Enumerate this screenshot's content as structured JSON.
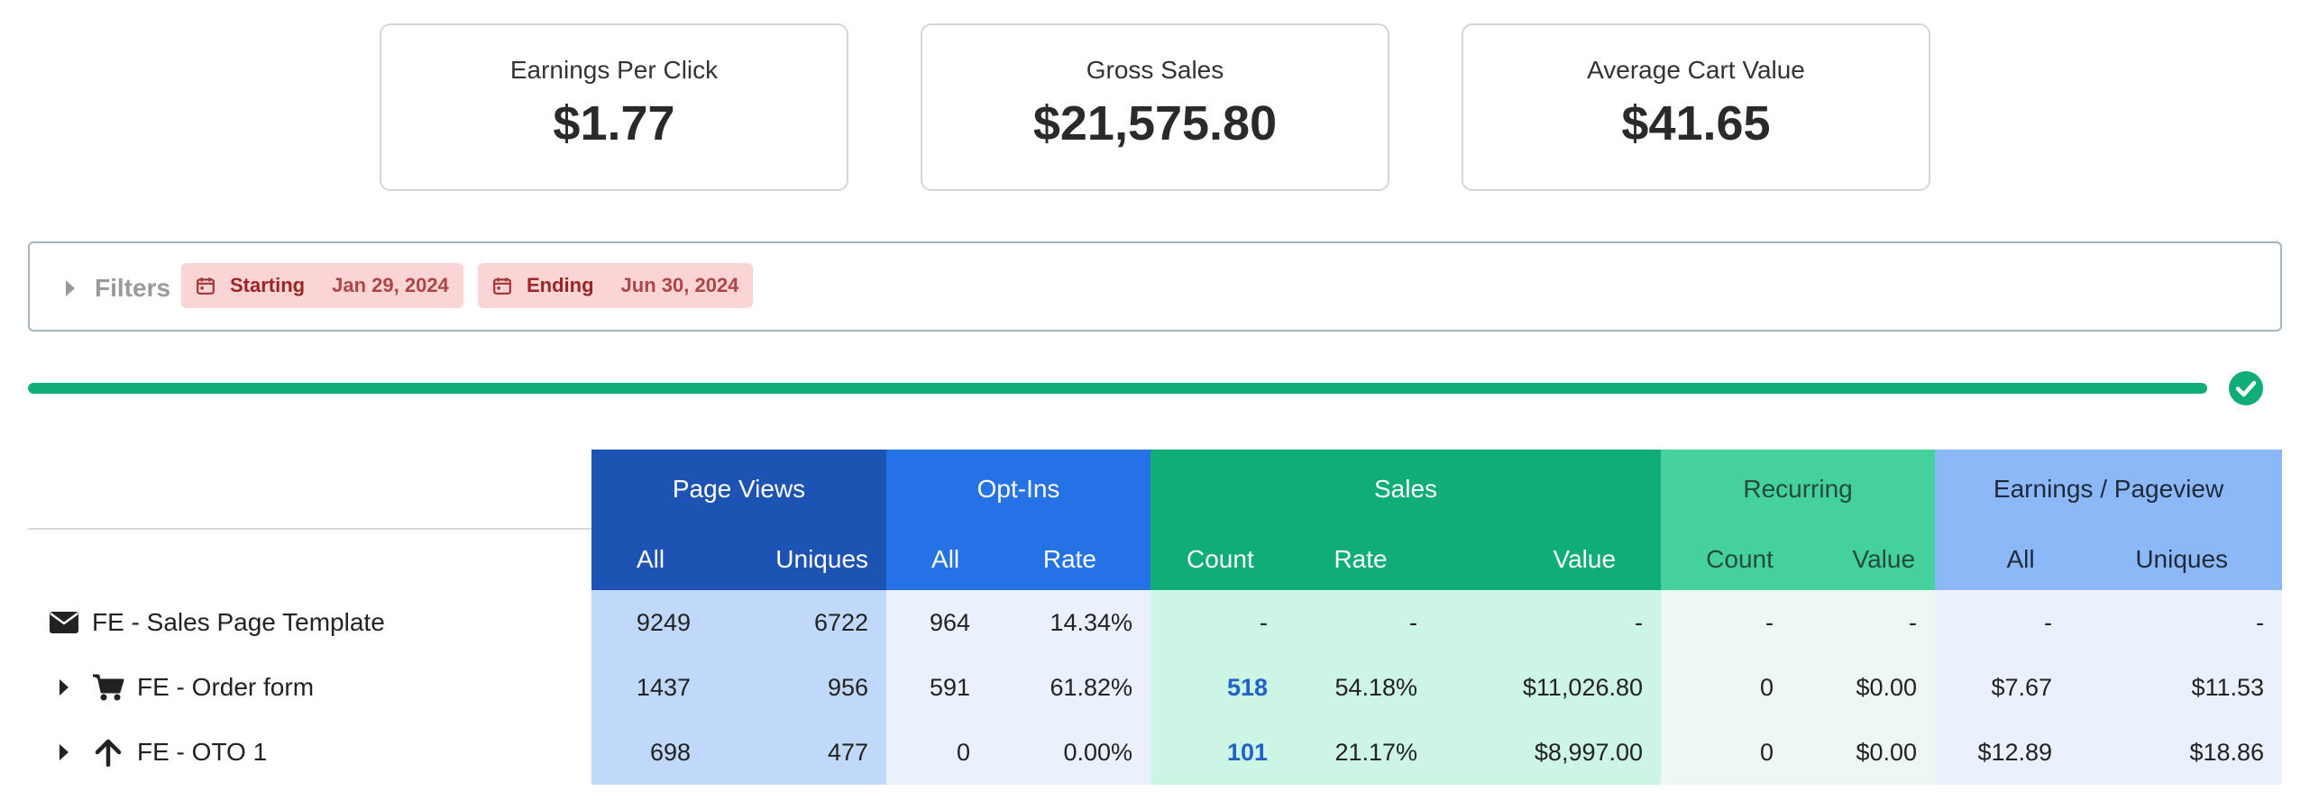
{
  "summary": {
    "cards": [
      {
        "label": "Earnings Per Click",
        "value": "$1.77"
      },
      {
        "label": "Gross Sales",
        "value": "$21,575.80"
      },
      {
        "label": "Average Cart Value",
        "value": "$41.65"
      }
    ]
  },
  "filters": {
    "label": "Filters",
    "start": {
      "key": "Starting",
      "value": "Jan 29, 2024",
      "icon": "calendar-icon"
    },
    "end": {
      "key": "Ending",
      "value": "Jun 30, 2024",
      "icon": "calendar-icon"
    }
  },
  "progress": {
    "fraction": 1.0,
    "complete_icon": "check-circle-icon",
    "color": "#11ad79"
  },
  "table": {
    "groups": {
      "page_views": "Page Views",
      "opt_ins": "Opt-Ins",
      "sales": "Sales",
      "recurring": "Recurring",
      "earnings_per_pageview": "Earnings / Pageview"
    },
    "subheaders": {
      "pv_all": "All",
      "pv_uniques": "Uniques",
      "opt_all": "All",
      "opt_rate": "Rate",
      "sales_count": "Count",
      "sales_rate": "Rate",
      "sales_value": "Value",
      "rec_count": "Count",
      "rec_value": "Value",
      "epv_all": "All",
      "epv_uniques": "Uniques"
    },
    "rows": [
      {
        "name": "FE - Sales Page Template",
        "icon": "envelope-icon",
        "expandable": false,
        "pv_all": "9249",
        "pv_uniques": "6722",
        "opt_all": "964",
        "opt_rate": "14.34%",
        "sales_count": "-",
        "sales_rate": "-",
        "sales_value": "-",
        "rec_count": "-",
        "rec_value": "-",
        "epv_all": "-",
        "epv_uniques": "-"
      },
      {
        "name": "FE - Order form",
        "icon": "shopping-cart-icon",
        "expandable": true,
        "pv_all": "1437",
        "pv_uniques": "956",
        "opt_all": "591",
        "opt_rate": "61.82%",
        "sales_count": "518",
        "sales_rate": "54.18%",
        "sales_value": "$11,026.80",
        "rec_count": "0",
        "rec_value": "$0.00",
        "epv_all": "$7.67",
        "epv_uniques": "$11.53"
      },
      {
        "name": "FE - OTO 1",
        "icon": "arrow-up-icon",
        "expandable": true,
        "pv_all": "698",
        "pv_uniques": "477",
        "opt_all": "0",
        "opt_rate": "0.00%",
        "sales_count": "101",
        "sales_rate": "21.17%",
        "sales_value": "$8,997.00",
        "rec_count": "0",
        "rec_value": "$0.00",
        "epv_all": "$12.89",
        "epv_uniques": "$18.86"
      }
    ]
  }
}
